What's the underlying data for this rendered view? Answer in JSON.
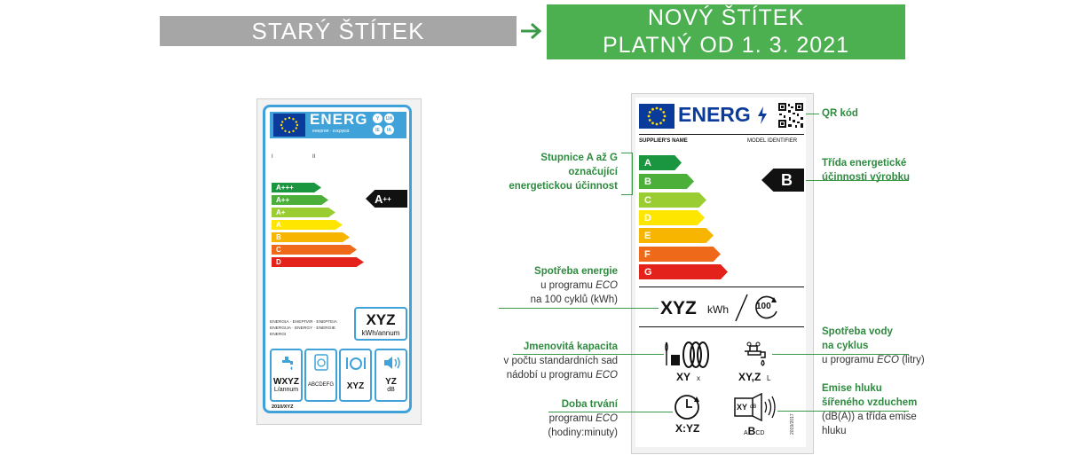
{
  "header": {
    "old_title": "STARÝ ŠTÍTEK",
    "new_title_line1": "NOVÝ ŠTÍTEK",
    "new_title_line2": "PLATNÝ OD 1. 3. 2021"
  },
  "colors": {
    "banner_old": "#a6a6a6",
    "banner_new": "#4caf50",
    "old_label_accent": "#3fa3d9",
    "eu_blue": "#0a3a9a",
    "annotation_green": "#2e8b3f",
    "bars": [
      "#1a9641",
      "#4caf3a",
      "#9acd32",
      "#ffe600",
      "#f7b500",
      "#ee6a1a",
      "#e3231b"
    ]
  },
  "old_label": {
    "energ": "ENERG",
    "energ_sub": "енергия · ενεργεια",
    "circles": [
      "Y",
      "IJA",
      "IE",
      "IA"
    ],
    "roman_i": "I",
    "roman_ii": "II",
    "classes": [
      "A+++",
      "A++",
      "A+",
      "A",
      "B",
      "C",
      "D"
    ],
    "pointer_base": "A",
    "pointer_sup": "++",
    "smalltext_line1": "ENERGIA · ЕНЕРГИЯ · ΕΝΕΡΓΕΙΑ",
    "smalltext_line2": "ENERGIJA · ENERGY · ENERGIE",
    "smalltext_line3": "ENERGI",
    "consumption_value": "XYZ",
    "consumption_unit": "kWh/annum",
    "icons": [
      {
        "icon": "water-tap-icon",
        "value": "WXYZ",
        "unit": "L/annum"
      },
      {
        "icon": "drying-icon",
        "value": "ABCDEFG",
        "unit": ""
      },
      {
        "icon": "place-settings-icon",
        "value": "XYZ",
        "unit": ""
      },
      {
        "icon": "noise-icon",
        "value": "YZ",
        "unit": "dB"
      }
    ],
    "footer": "2010/XYZ"
  },
  "new_label": {
    "energ": "ENERG",
    "supplier": "SUPPLIER'S NAME",
    "model": "MODEL IDENTIFIER",
    "classes": [
      "A",
      "B",
      "C",
      "D",
      "E",
      "F",
      "G"
    ],
    "pointer": "B",
    "energy_value": "XYZ",
    "energy_unit": "kWh",
    "cycles": "100",
    "capacity_value": "XY",
    "capacity_unit": "x",
    "water_value": "XY,Z",
    "water_unit": "L",
    "duration_value": "X:YZ",
    "noise_value": "XY",
    "noise_unit": "dB",
    "noise_class_small1": "A",
    "noise_class_big": "B",
    "noise_class_small2": "CD",
    "regulation": "2019/2017"
  },
  "annotations": {
    "qr": "QR kód",
    "scale_line1": "Stupnice A až G",
    "scale_line2": "označující",
    "scale_line3": "energetickou účinnost",
    "class_line1": "Třída energetické",
    "class_line2": "účinnosti výrobku",
    "energy_title": "Spotřeba energie",
    "energy_line2_a": "u programu ",
    "energy_line2_b": "ECO",
    "energy_line3": "na 100 cyklů (kWh)",
    "water_title_line1": "Spotřeba vody",
    "water_title_line2": "na cyklus",
    "water_line3_a": "u programu ",
    "water_line3_b": "ECO",
    "water_line3_c": " (litry)",
    "capacity_title": "Jmenovitá kapacita",
    "capacity_line2": "v počtu standardních sad",
    "capacity_line3_a": "nádobí u programu ",
    "capacity_line3_b": "ECO",
    "duration_title": "Doba trvání",
    "duration_line2_a": "programu ",
    "duration_line2_b": "ECO",
    "duration_line3": "(hodiny:minuty)",
    "noise_title_line1": "Emise hluku",
    "noise_title_line2": "šířeného vzduchem",
    "noise_line3": "(dB(A)) a třída emise",
    "noise_line4": "hluku"
  }
}
